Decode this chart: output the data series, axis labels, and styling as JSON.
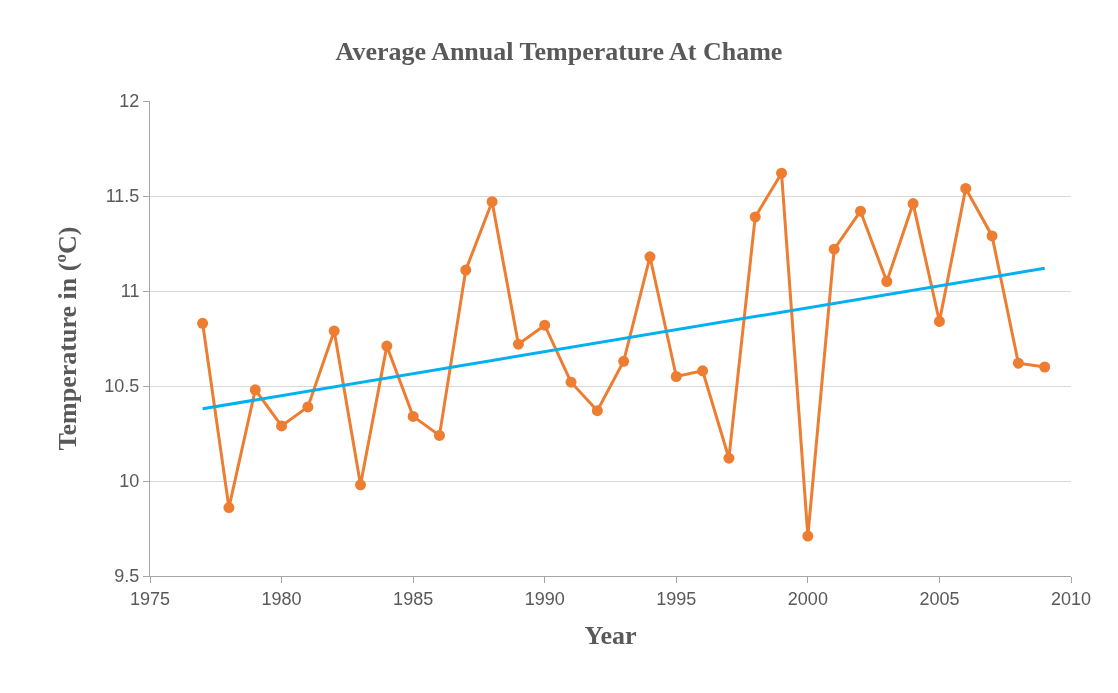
{
  "chart_data": {
    "type": "line",
    "title": "Average Annual Temperature At Chame",
    "xlabel": "Year",
    "ylabel": "Temperature in (ºC)",
    "x": [
      1977,
      1978,
      1979,
      1980,
      1981,
      1982,
      1983,
      1984,
      1985,
      1986,
      1987,
      1988,
      1989,
      1990,
      1991,
      1992,
      1993,
      1994,
      1995,
      1996,
      1997,
      1998,
      1999,
      2000,
      2001,
      2002,
      2003,
      2004,
      2005,
      2006,
      2007,
      2008,
      2009
    ],
    "series": [
      {
        "color": "#ed7d31",
        "marker": "circle",
        "values": [
          10.83,
          9.86,
          10.48,
          10.29,
          10.39,
          10.79,
          9.98,
          10.71,
          10.34,
          10.24,
          11.11,
          11.47,
          10.72,
          10.82,
          10.52,
          10.37,
          10.63,
          11.18,
          10.55,
          10.58,
          10.12,
          11.39,
          11.62,
          9.71,
          11.22,
          11.42,
          11.05,
          11.46,
          10.84,
          11.54,
          11.29,
          10.62,
          10.6
        ]
      },
      {
        "type": "line",
        "color": "#00b0f0",
        "marker": "none",
        "x": [
          1977,
          2009
        ],
        "values": [
          10.38,
          11.12
        ]
      }
    ],
    "xlim": [
      1975,
      2010
    ],
    "xticks": [
      1975,
      1980,
      1985,
      1990,
      1995,
      2000,
      2005,
      2010
    ],
    "ylim": [
      9.5,
      12
    ],
    "yticks": [
      9.5,
      10,
      10.5,
      11,
      11.5,
      12
    ],
    "grid": "y",
    "line_style": "solid"
  }
}
